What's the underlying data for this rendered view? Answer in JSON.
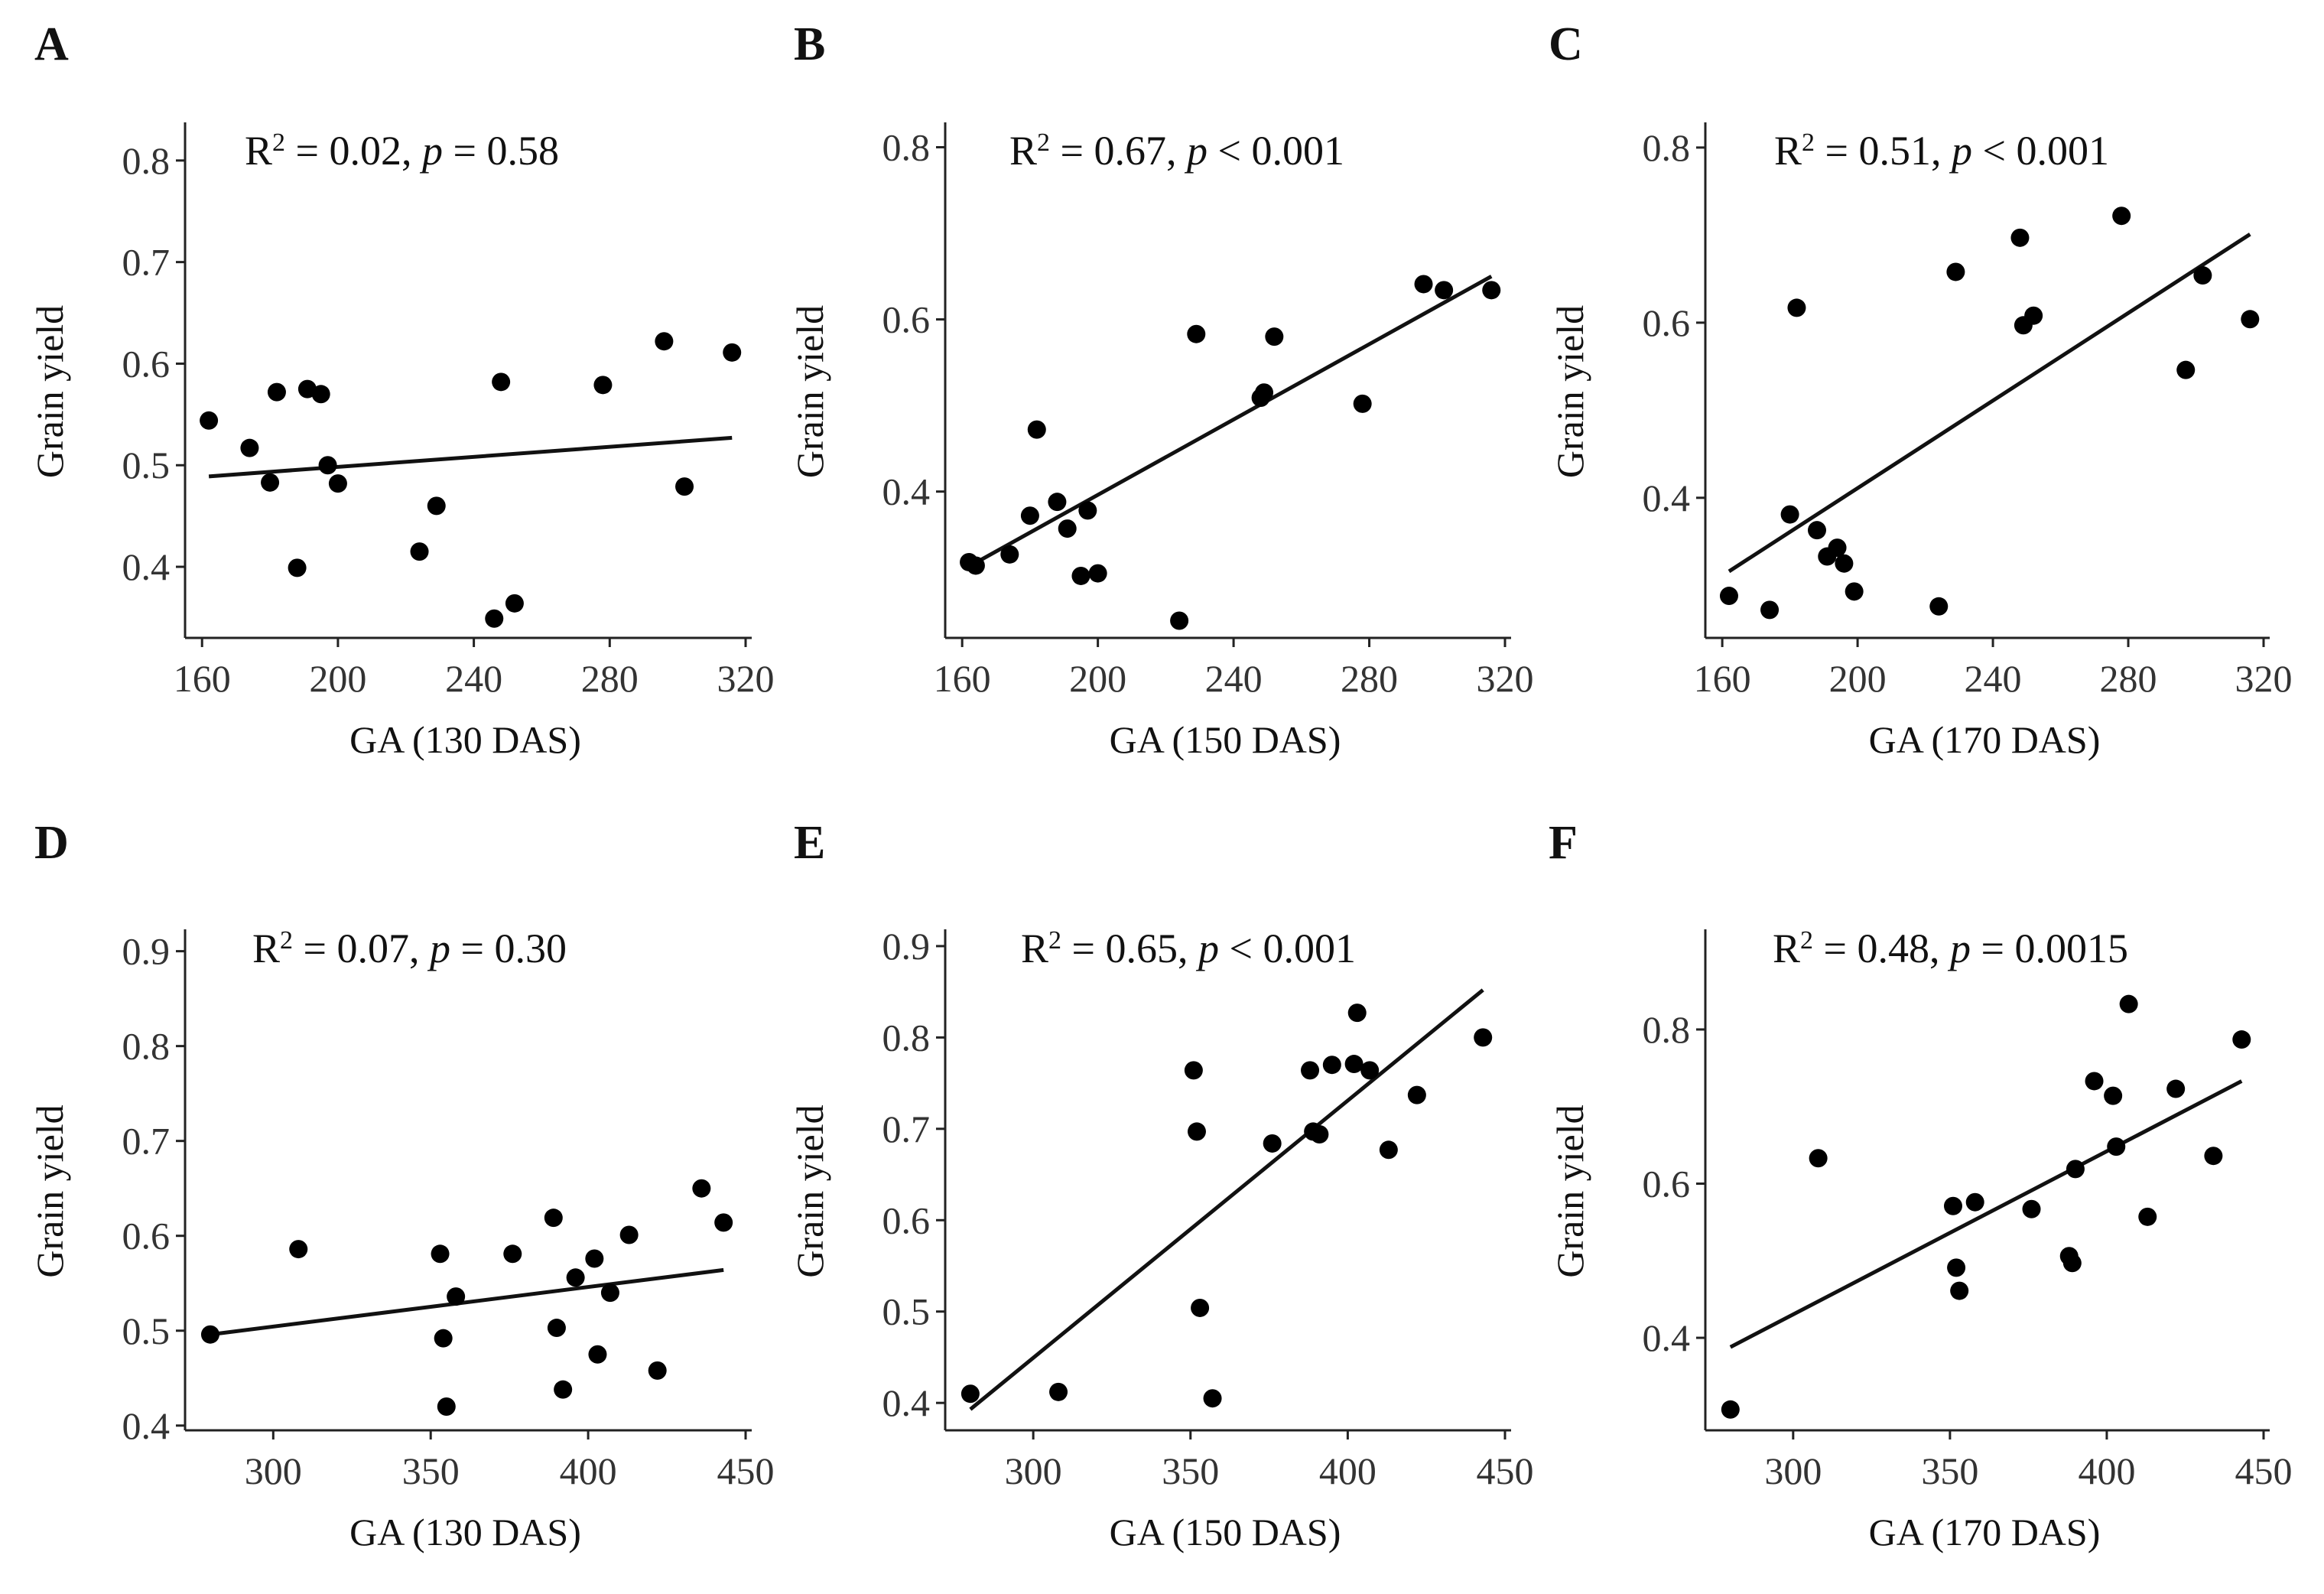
{
  "chart_data": [
    {
      "panel": "A",
      "type": "scatter",
      "annotation": {
        "r2_prefix": "R",
        "r2_sup": "2",
        "r2_value": " = 0.02, ",
        "p_label": "p",
        "p_value": " = 0.58"
      },
      "xlabel": "GA (130 DAS)",
      "ylabel": "Grain yield",
      "xlim": [
        155,
        320
      ],
      "ylim": [
        0.33,
        0.83
      ],
      "xticks": [
        160,
        200,
        240,
        280,
        320
      ],
      "yticks": [
        0.4,
        0.5,
        0.6,
        0.7,
        0.8
      ],
      "xtick_labels": [
        "160",
        "200",
        "240",
        "280",
        "320"
      ],
      "ytick_labels": [
        "0.4",
        "0.5",
        "0.6",
        "0.7",
        "0.8"
      ],
      "points": [
        [
          162,
          0.544
        ],
        [
          174,
          0.517
        ],
        [
          180,
          0.483
        ],
        [
          182,
          0.572
        ],
        [
          188,
          0.399
        ],
        [
          191,
          0.575
        ],
        [
          195,
          0.57
        ],
        [
          197,
          0.5
        ],
        [
          200,
          0.482
        ],
        [
          224,
          0.415
        ],
        [
          229,
          0.46
        ],
        [
          246,
          0.349
        ],
        [
          248,
          0.582
        ],
        [
          252,
          0.364
        ],
        [
          278,
          0.579
        ],
        [
          296,
          0.622
        ],
        [
          302,
          0.479
        ],
        [
          316,
          0.611
        ]
      ],
      "fit": [
        [
          162,
          0.489
        ],
        [
          316,
          0.527
        ]
      ]
    },
    {
      "panel": "B",
      "type": "scatter",
      "annotation": {
        "r2_prefix": "R",
        "r2_sup": "2",
        "r2_value": " = 0.67, ",
        "p_label": "p",
        "p_value": " < 0.001"
      },
      "xlabel": "GA (150 DAS)",
      "ylabel": "Grain yield",
      "xlim": [
        155,
        320
      ],
      "ylim": [
        0.23,
        0.82
      ],
      "xticks": [
        160,
        200,
        240,
        280,
        320
      ],
      "yticks": [
        0.4,
        0.6,
        0.8
      ],
      "xtick_labels": [
        "160",
        "200",
        "240",
        "280",
        "320"
      ],
      "ytick_labels": [
        "0.4",
        "0.6",
        "0.8"
      ],
      "points": [
        [
          162,
          0.318
        ],
        [
          164,
          0.314
        ],
        [
          174,
          0.327
        ],
        [
          180,
          0.372
        ],
        [
          182,
          0.472
        ],
        [
          188,
          0.388
        ],
        [
          191,
          0.357
        ],
        [
          195,
          0.302
        ],
        [
          197,
          0.378
        ],
        [
          200,
          0.305
        ],
        [
          224,
          0.25
        ],
        [
          229,
          0.583
        ],
        [
          248,
          0.509
        ],
        [
          249,
          0.515
        ],
        [
          252,
          0.58
        ],
        [
          278,
          0.502
        ],
        [
          296,
          0.641
        ],
        [
          302,
          0.634
        ],
        [
          316,
          0.634
        ]
      ],
      "fit": [
        [
          162,
          0.313
        ],
        [
          316,
          0.65
        ]
      ]
    },
    {
      "panel": "C",
      "type": "scatter",
      "annotation": {
        "r2_prefix": "R",
        "r2_sup": "2",
        "r2_value": " = 0.51, ",
        "p_label": "p",
        "p_value": " < 0.001"
      },
      "xlabel": "GA (170 DAS)",
      "ylabel": "Grain yield",
      "xlim": [
        155,
        320
      ],
      "ylim": [
        0.24,
        0.82
      ],
      "xticks": [
        160,
        200,
        240,
        280,
        320
      ],
      "yticks": [
        0.4,
        0.6,
        0.8
      ],
      "xtick_labels": [
        "160",
        "200",
        "240",
        "280",
        "320"
      ],
      "ytick_labels": [
        "0.4",
        "0.6",
        "0.8"
      ],
      "points": [
        [
          162,
          0.288
        ],
        [
          174,
          0.272
        ],
        [
          180,
          0.381
        ],
        [
          182,
          0.617
        ],
        [
          188,
          0.363
        ],
        [
          191,
          0.333
        ],
        [
          194,
          0.343
        ],
        [
          196,
          0.325
        ],
        [
          199,
          0.293
        ],
        [
          224,
          0.276
        ],
        [
          229,
          0.658
        ],
        [
          248,
          0.697
        ],
        [
          249,
          0.597
        ],
        [
          252,
          0.608
        ],
        [
          278,
          0.722
        ],
        [
          297,
          0.546
        ],
        [
          302,
          0.654
        ],
        [
          316,
          0.604
        ]
      ],
      "fit": [
        [
          162,
          0.316
        ],
        [
          316,
          0.701
        ]
      ]
    },
    {
      "panel": "D",
      "type": "scatter",
      "annotation": {
        "r2_prefix": "R",
        "r2_sup": "2",
        "r2_value": " = 0.07, ",
        "p_label": "p",
        "p_value": " = 0.30"
      },
      "xlabel": "GA (130 DAS)",
      "ylabel": "Grain yield",
      "xlim": [
        272,
        450
      ],
      "ylim": [
        0.395,
        0.915
      ],
      "xticks": [
        300,
        350,
        400,
        450
      ],
      "yticks": [
        0.4,
        0.5,
        0.6,
        0.7,
        0.8,
        0.9
      ],
      "xtick_labels": [
        "300",
        "350",
        "400",
        "450"
      ],
      "ytick_labels": [
        "0.4",
        "0.5",
        "0.6",
        "0.7",
        "0.8",
        "0.9"
      ],
      "points": [
        [
          280,
          0.496
        ],
        [
          308,
          0.586
        ],
        [
          353,
          0.581
        ],
        [
          354,
          0.492
        ],
        [
          355,
          0.42
        ],
        [
          358,
          0.536
        ],
        [
          376,
          0.581
        ],
        [
          389,
          0.619
        ],
        [
          390,
          0.503
        ],
        [
          392,
          0.438
        ],
        [
          396,
          0.556
        ],
        [
          402,
          0.576
        ],
        [
          403,
          0.475
        ],
        [
          407,
          0.54
        ],
        [
          413,
          0.601
        ],
        [
          422,
          0.458
        ],
        [
          436,
          0.65
        ],
        [
          443,
          0.614
        ]
      ],
      "fit": [
        [
          280,
          0.496
        ],
        [
          443,
          0.564
        ]
      ]
    },
    {
      "panel": "E",
      "type": "scatter",
      "annotation": {
        "r2_prefix": "R",
        "r2_sup": "2",
        "r2_value": " = 0.65, ",
        "p_label": "p",
        "p_value": " < 0.001"
      },
      "xlabel": "GA (150 DAS)",
      "ylabel": "Grain yield",
      "xlim": [
        272,
        450
      ],
      "ylim": [
        0.37,
        0.91
      ],
      "xticks": [
        300,
        350,
        400,
        450
      ],
      "yticks": [
        0.4,
        0.5,
        0.6,
        0.7,
        0.8,
        0.9
      ],
      "xtick_labels": [
        "300",
        "350",
        "400",
        "450"
      ],
      "ytick_labels": [
        "0.4",
        "0.5",
        "0.6",
        "0.7",
        "0.8",
        "0.9"
      ],
      "points": [
        [
          280,
          0.41
        ],
        [
          308,
          0.412
        ],
        [
          351,
          0.764
        ],
        [
          352,
          0.697
        ],
        [
          353,
          0.504
        ],
        [
          357,
          0.405
        ],
        [
          376,
          0.684
        ],
        [
          388,
          0.764
        ],
        [
          389,
          0.697
        ],
        [
          391,
          0.694
        ],
        [
          395,
          0.77
        ],
        [
          402,
          0.771
        ],
        [
          403,
          0.827
        ],
        [
          407,
          0.764
        ],
        [
          413,
          0.677
        ],
        [
          422,
          0.737
        ],
        [
          443,
          0.8
        ]
      ],
      "fit": [
        [
          280,
          0.393
        ],
        [
          443,
          0.852
        ]
      ]
    },
    {
      "panel": "F",
      "type": "scatter",
      "annotation": {
        "r2_prefix": "R",
        "r2_sup": "2",
        "r2_value": " = 0.48, ",
        "p_label": "p",
        "p_value": " = 0.0015"
      },
      "xlabel": "GA (170 DAS)",
      "ylabel": "Grain yield",
      "xlim": [
        272,
        450
      ],
      "ylim": [
        0.28,
        0.92
      ],
      "xticks": [
        300,
        350,
        400,
        450
      ],
      "yticks": [
        0.4,
        0.6,
        0.8
      ],
      "xtick_labels": [
        "300",
        "350",
        "400",
        "450"
      ],
      "ytick_labels": [
        "0.4",
        "0.6",
        "0.8"
      ],
      "points": [
        [
          280,
          0.307
        ],
        [
          308,
          0.633
        ],
        [
          351,
          0.571
        ],
        [
          352,
          0.491
        ],
        [
          353,
          0.461
        ],
        [
          358,
          0.576
        ],
        [
          376,
          0.567
        ],
        [
          388,
          0.506
        ],
        [
          389,
          0.497
        ],
        [
          390,
          0.619
        ],
        [
          396,
          0.733
        ],
        [
          402,
          0.714
        ],
        [
          403,
          0.648
        ],
        [
          407,
          0.833
        ],
        [
          413,
          0.557
        ],
        [
          422,
          0.723
        ],
        [
          434,
          0.636
        ],
        [
          443,
          0.787
        ]
      ],
      "fit": [
        [
          280,
          0.388
        ],
        [
          443,
          0.733
        ]
      ]
    }
  ]
}
